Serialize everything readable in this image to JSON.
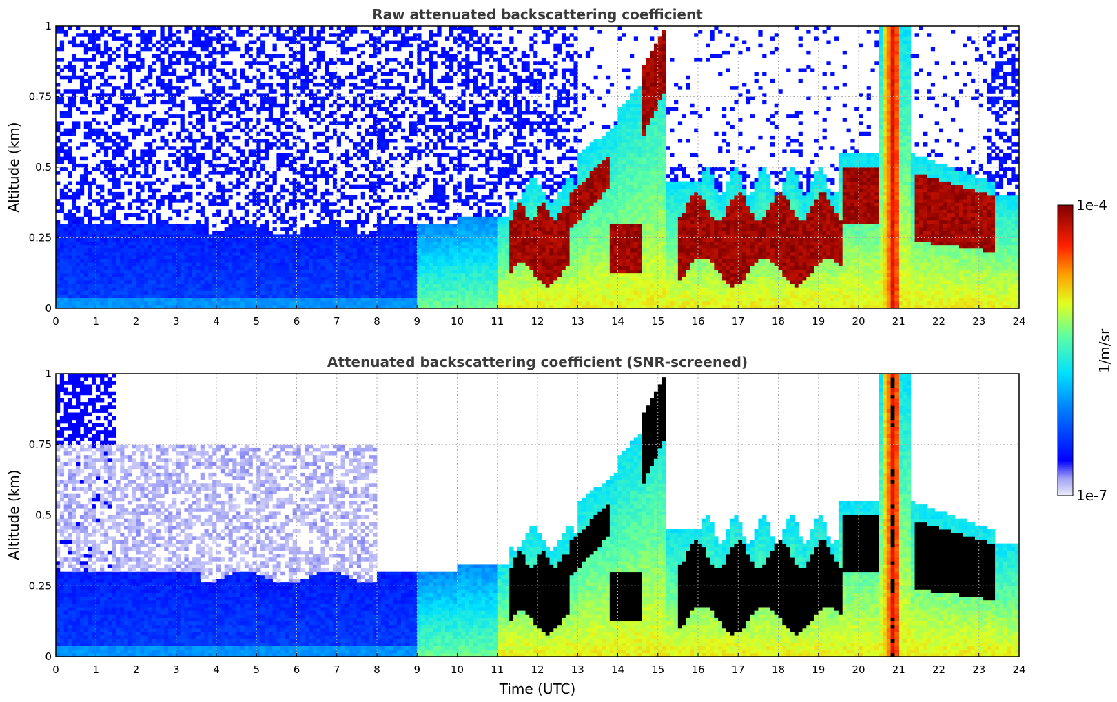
{
  "chart_data": [
    {
      "type": "heatmap",
      "title": "Raw attenuated backscattering coefficient",
      "xlabel": "",
      "ylabel": "Altitude (km)",
      "xlim": [
        0,
        24
      ],
      "ylim": [
        0,
        1
      ],
      "xticks": [
        "0",
        "1",
        "2",
        "3",
        "4",
        "5",
        "6",
        "7",
        "8",
        "9",
        "10",
        "11",
        "12",
        "13",
        "14",
        "15",
        "16",
        "17",
        "18",
        "19",
        "20",
        "21",
        "22",
        "23",
        "24"
      ],
      "yticks": [
        "0",
        "0.25",
        "0.5",
        "0.75",
        "1"
      ],
      "grid": true,
      "screened": false
    },
    {
      "type": "heatmap",
      "title": "Attenuated backscattering coefficient (SNR-screened)",
      "xlabel": "Time (UTC)",
      "ylabel": "Altitude (km)",
      "xlim": [
        0,
        24
      ],
      "ylim": [
        0,
        1
      ],
      "xticks": [
        "0",
        "1",
        "2",
        "3",
        "4",
        "5",
        "6",
        "7",
        "8",
        "9",
        "10",
        "11",
        "12",
        "13",
        "14",
        "15",
        "16",
        "17",
        "18",
        "19",
        "20",
        "21",
        "22",
        "23",
        "24"
      ],
      "yticks": [
        "0",
        "0.25",
        "0.5",
        "0.75",
        "1"
      ],
      "grid": true,
      "screened": true
    }
  ],
  "colorbar": {
    "label": "1/m/sr",
    "max_label": "1e-4",
    "min_label": "1e-7",
    "scale": "log",
    "colormap": "jet"
  },
  "colors": {
    "title": "#3a3a3a",
    "grid": "#b0b0b0",
    "clipped": "#000000",
    "background": "#ffffff"
  }
}
